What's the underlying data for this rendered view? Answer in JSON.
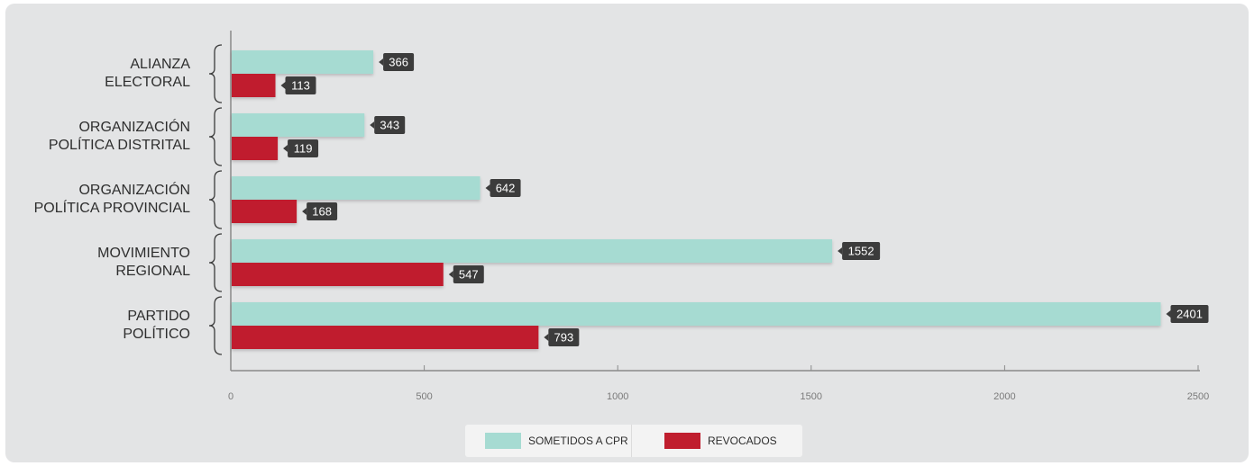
{
  "colors": {
    "sometidos": "#a6dbd2",
    "revocados": "#c01e2e",
    "value_box": "#3c3c3c",
    "axis": "#8a8a8a",
    "background": "#e3e4e5"
  },
  "legend": {
    "items": [
      {
        "label": "SOMETIDOS A CPR",
        "color": "#a6dbd2"
      },
      {
        "label": "REVOCADOS",
        "color": "#c01e2e"
      }
    ]
  },
  "chart_data": {
    "type": "bar",
    "orientation": "horizontal",
    "categories": [
      [
        "ALIANZA",
        "ELECTORAL"
      ],
      [
        "ORGANIZACIÓN",
        "POLÍTICA DISTRITAL"
      ],
      [
        "ORGANIZACIÓN",
        "POLÍTICA PROVINCIAL"
      ],
      [
        "MOVIMIENTO",
        "REGIONAL"
      ],
      [
        "PARTIDO",
        "POLÍTICO"
      ]
    ],
    "series": [
      {
        "name": "SOMETIDOS A CPR",
        "values": [
          366,
          343,
          642,
          1552,
          2401
        ]
      },
      {
        "name": "REVOCADOS",
        "values": [
          113,
          119,
          168,
          547,
          793
        ]
      }
    ],
    "xlim": [
      0,
      2500
    ],
    "ticks": [
      "0",
      "500",
      "1000",
      "1500",
      "2000",
      "2500"
    ],
    "grid": false,
    "legend_position": "bottom-center"
  }
}
